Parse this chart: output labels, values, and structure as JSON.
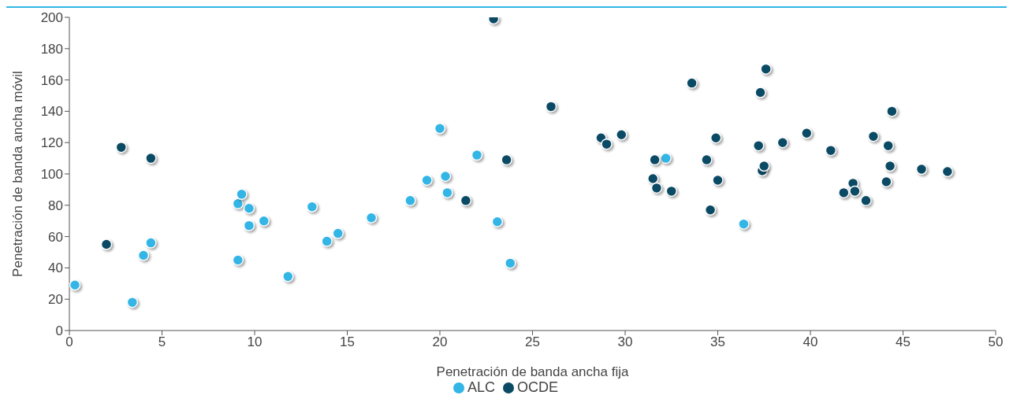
{
  "chart_data": {
    "type": "scatter",
    "xlabel": "Penetración de banda ancha fija",
    "ylabel": "Penetración de banda ancha móvil",
    "xlim": [
      0,
      50
    ],
    "xticks": [
      0,
      5,
      10,
      15,
      20,
      25,
      30,
      35,
      40,
      45,
      50
    ],
    "ylim": [
      0,
      200
    ],
    "yticks": [
      0,
      20,
      40,
      60,
      80,
      100,
      120,
      140,
      160,
      180,
      200
    ],
    "grid": false,
    "legend": "bottom",
    "marker": "circle",
    "series": [
      {
        "name": "ALC",
        "color": "#33b5e5",
        "x": [
          0.3,
          3.4,
          4.0,
          4.4,
          9.1,
          9.1,
          9.3,
          9.7,
          9.7,
          10.5,
          11.8,
          13.1,
          13.9,
          14.5,
          16.3,
          18.4,
          19.3,
          20.0,
          20.3,
          20.4,
          22.0,
          23.1,
          23.8,
          32.2,
          36.4
        ],
        "values": [
          29,
          18,
          48,
          56,
          45,
          81,
          87,
          78,
          67,
          70,
          34.5,
          79,
          57,
          62,
          72,
          83,
          96,
          129,
          98.5,
          88,
          112,
          69.5,
          43,
          110,
          68
        ]
      },
      {
        "name": "OCDE",
        "color": "#0b4a64",
        "x": [
          2.0,
          2.8,
          4.4,
          21.4,
          22.9,
          23.6,
          26.0,
          28.7,
          29.0,
          29.8,
          31.5,
          31.6,
          31.7,
          32.5,
          33.6,
          34.4,
          34.6,
          34.9,
          35.0,
          37.2,
          37.3,
          37.4,
          37.5,
          37.6,
          38.5,
          39.8,
          41.1,
          41.8,
          42.3,
          42.4,
          43.0,
          43.4,
          44.1,
          44.2,
          44.3,
          44.4,
          46.0,
          47.4
        ],
        "values": [
          55,
          117,
          110,
          83,
          199,
          109,
          143,
          123,
          119,
          125,
          97,
          109,
          91,
          89,
          158,
          109,
          77,
          123,
          96,
          118,
          152,
          102,
          105,
          167,
          120,
          126,
          115,
          88,
          94,
          89,
          83,
          124,
          95,
          118,
          105,
          140,
          103,
          101.5
        ]
      }
    ]
  }
}
